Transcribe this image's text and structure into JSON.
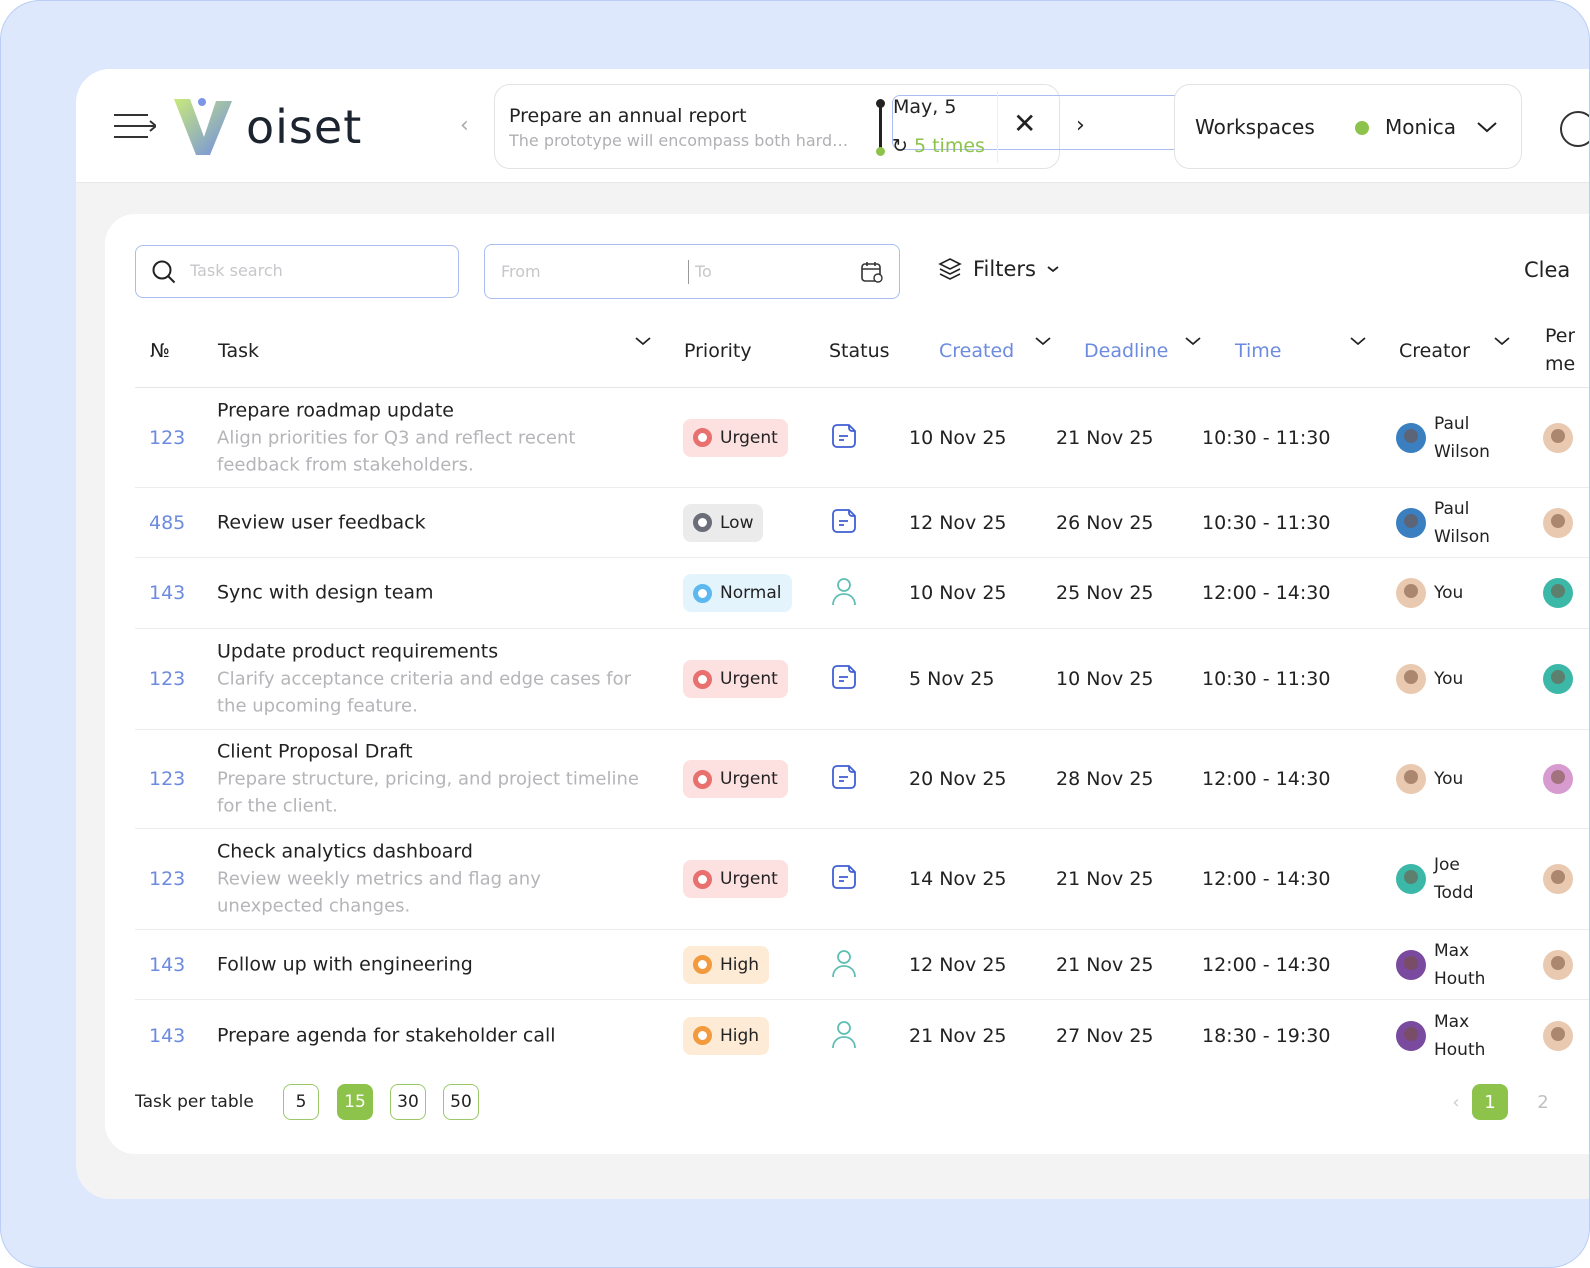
{
  "header": {
    "logo": "Voiset",
    "logo_text": "oiset",
    "notification": {
      "title": "Prepare an annual report",
      "description": "The prototype will encompass both hardware and software",
      "date": "May, 5",
      "repeat": "5 times"
    },
    "workspaces_label": "Workspaces",
    "workspace_name": "Monica",
    "workspace_status_color": "#8dc34b"
  },
  "toolbar": {
    "search_placeholder": "Task search",
    "from_placeholder": "From",
    "to_placeholder": "To",
    "filters_label": "Filters",
    "clear_label": "Clea"
  },
  "columns": {
    "num": "№",
    "task": "Task",
    "priority": "Priority",
    "status": "Status",
    "created": "Created",
    "deadline": "Deadline",
    "time": "Time",
    "creator": "Creator",
    "performer": "Per\nme"
  },
  "rows": [
    {
      "num": "123",
      "title": "Prepare roadmap update",
      "desc": "Align priorities for Q3 and reflect recent feedback from stakeholders.",
      "priority": "Urgent",
      "status": "document-icon",
      "created": "10 Nov 25",
      "deadline": "21 Nov 25",
      "time": "10:30 - 11:30",
      "creator": "Paul Wilson",
      "creator_color": "#3a7fc0",
      "performer_color": "#e9c9b0"
    },
    {
      "num": "485",
      "title": "Review user feedback",
      "desc": "",
      "priority": "Low",
      "status": "document-icon",
      "created": "12 Nov 25",
      "deadline": "26 Nov 25",
      "time": "10:30 - 11:30",
      "creator": "Paul Wilson",
      "creator_color": "#3a7fc0",
      "performer_color": "#e9c9b0"
    },
    {
      "num": "143",
      "title": "Sync with design team",
      "desc": "",
      "priority": "Normal",
      "status": "user-icon",
      "created": "10 Nov 25",
      "deadline": "25 Nov 25",
      "time": "12:00 - 14:30",
      "creator": "You",
      "creator_color": "#e9c9b0",
      "performer_color": "#3cb8a8"
    },
    {
      "num": "123",
      "title": "Update product requirements",
      "desc": "Clarify acceptance criteria and edge cases for the upcoming feature.",
      "priority": "Urgent",
      "status": "document-icon",
      "created": "5 Nov 25",
      "deadline": "10 Nov 25",
      "time": "10:30 - 11:30",
      "creator": "You",
      "creator_color": "#e9c9b0",
      "performer_color": "#3cb8a8"
    },
    {
      "num": "123",
      "title": "Client Proposal Draft",
      "desc": "Prepare structure, pricing, and project timeline for the client.",
      "priority": "Urgent",
      "status": "document-icon",
      "created": "20 Nov 25",
      "deadline": "28 Nov 25",
      "time": "12:00 - 14:30",
      "creator": "You",
      "creator_color": "#e9c9b0",
      "performer_color": "#d79bd0"
    },
    {
      "num": "123",
      "title": "Check analytics dashboard",
      "desc": "Review weekly metrics and flag any unexpected changes.",
      "priority": "Urgent",
      "status": "document-icon",
      "created": "14 Nov 25",
      "deadline": "21 Nov 25",
      "time": "12:00 - 14:30",
      "creator": "Joe Todd",
      "creator_color": "#3cb8a8",
      "performer_color": "#e9c9b0"
    },
    {
      "num": "143",
      "title": "Follow up with engineering",
      "desc": "",
      "priority": "High",
      "status": "user-icon",
      "created": "12 Nov 25",
      "deadline": "21 Nov 25",
      "time": "12:00 - 14:30",
      "creator": "Max Houth",
      "creator_color": "#7a4a9e",
      "performer_color": "#e9c9b0"
    },
    {
      "num": "143",
      "title": "Prepare agenda for stakeholder call",
      "desc": "",
      "priority": "High",
      "status": "user-icon",
      "created": "21 Nov 25",
      "deadline": "27 Nov 25",
      "time": "18:30 - 19:30",
      "creator": "Max Houth",
      "creator_color": "#7a4a9e",
      "performer_color": "#e9c9b0"
    }
  ],
  "priority_colors": {
    "Urgent": {
      "bg": "#fde0e0",
      "ring": "#e8706f"
    },
    "Low": {
      "bg": "#ebebec",
      "ring": "#6b6d78"
    },
    "Normal": {
      "bg": "#e3f4fd",
      "ring": "#5cb8ef"
    },
    "High": {
      "bg": "#fdebd6",
      "ring": "#f19a3e"
    }
  },
  "footer": {
    "per_table_label": "Task per table",
    "per_table_options": [
      "5",
      "15",
      "30",
      "50"
    ],
    "per_table_selected": "15",
    "pages": [
      "1",
      "2"
    ],
    "current_page": "1"
  },
  "colors": {
    "accent_green": "#8dc34b",
    "accent_blue": "#6c8be0",
    "status_icon_blue": "#3f5fd4",
    "status_icon_teal": "#5fbfb5"
  }
}
